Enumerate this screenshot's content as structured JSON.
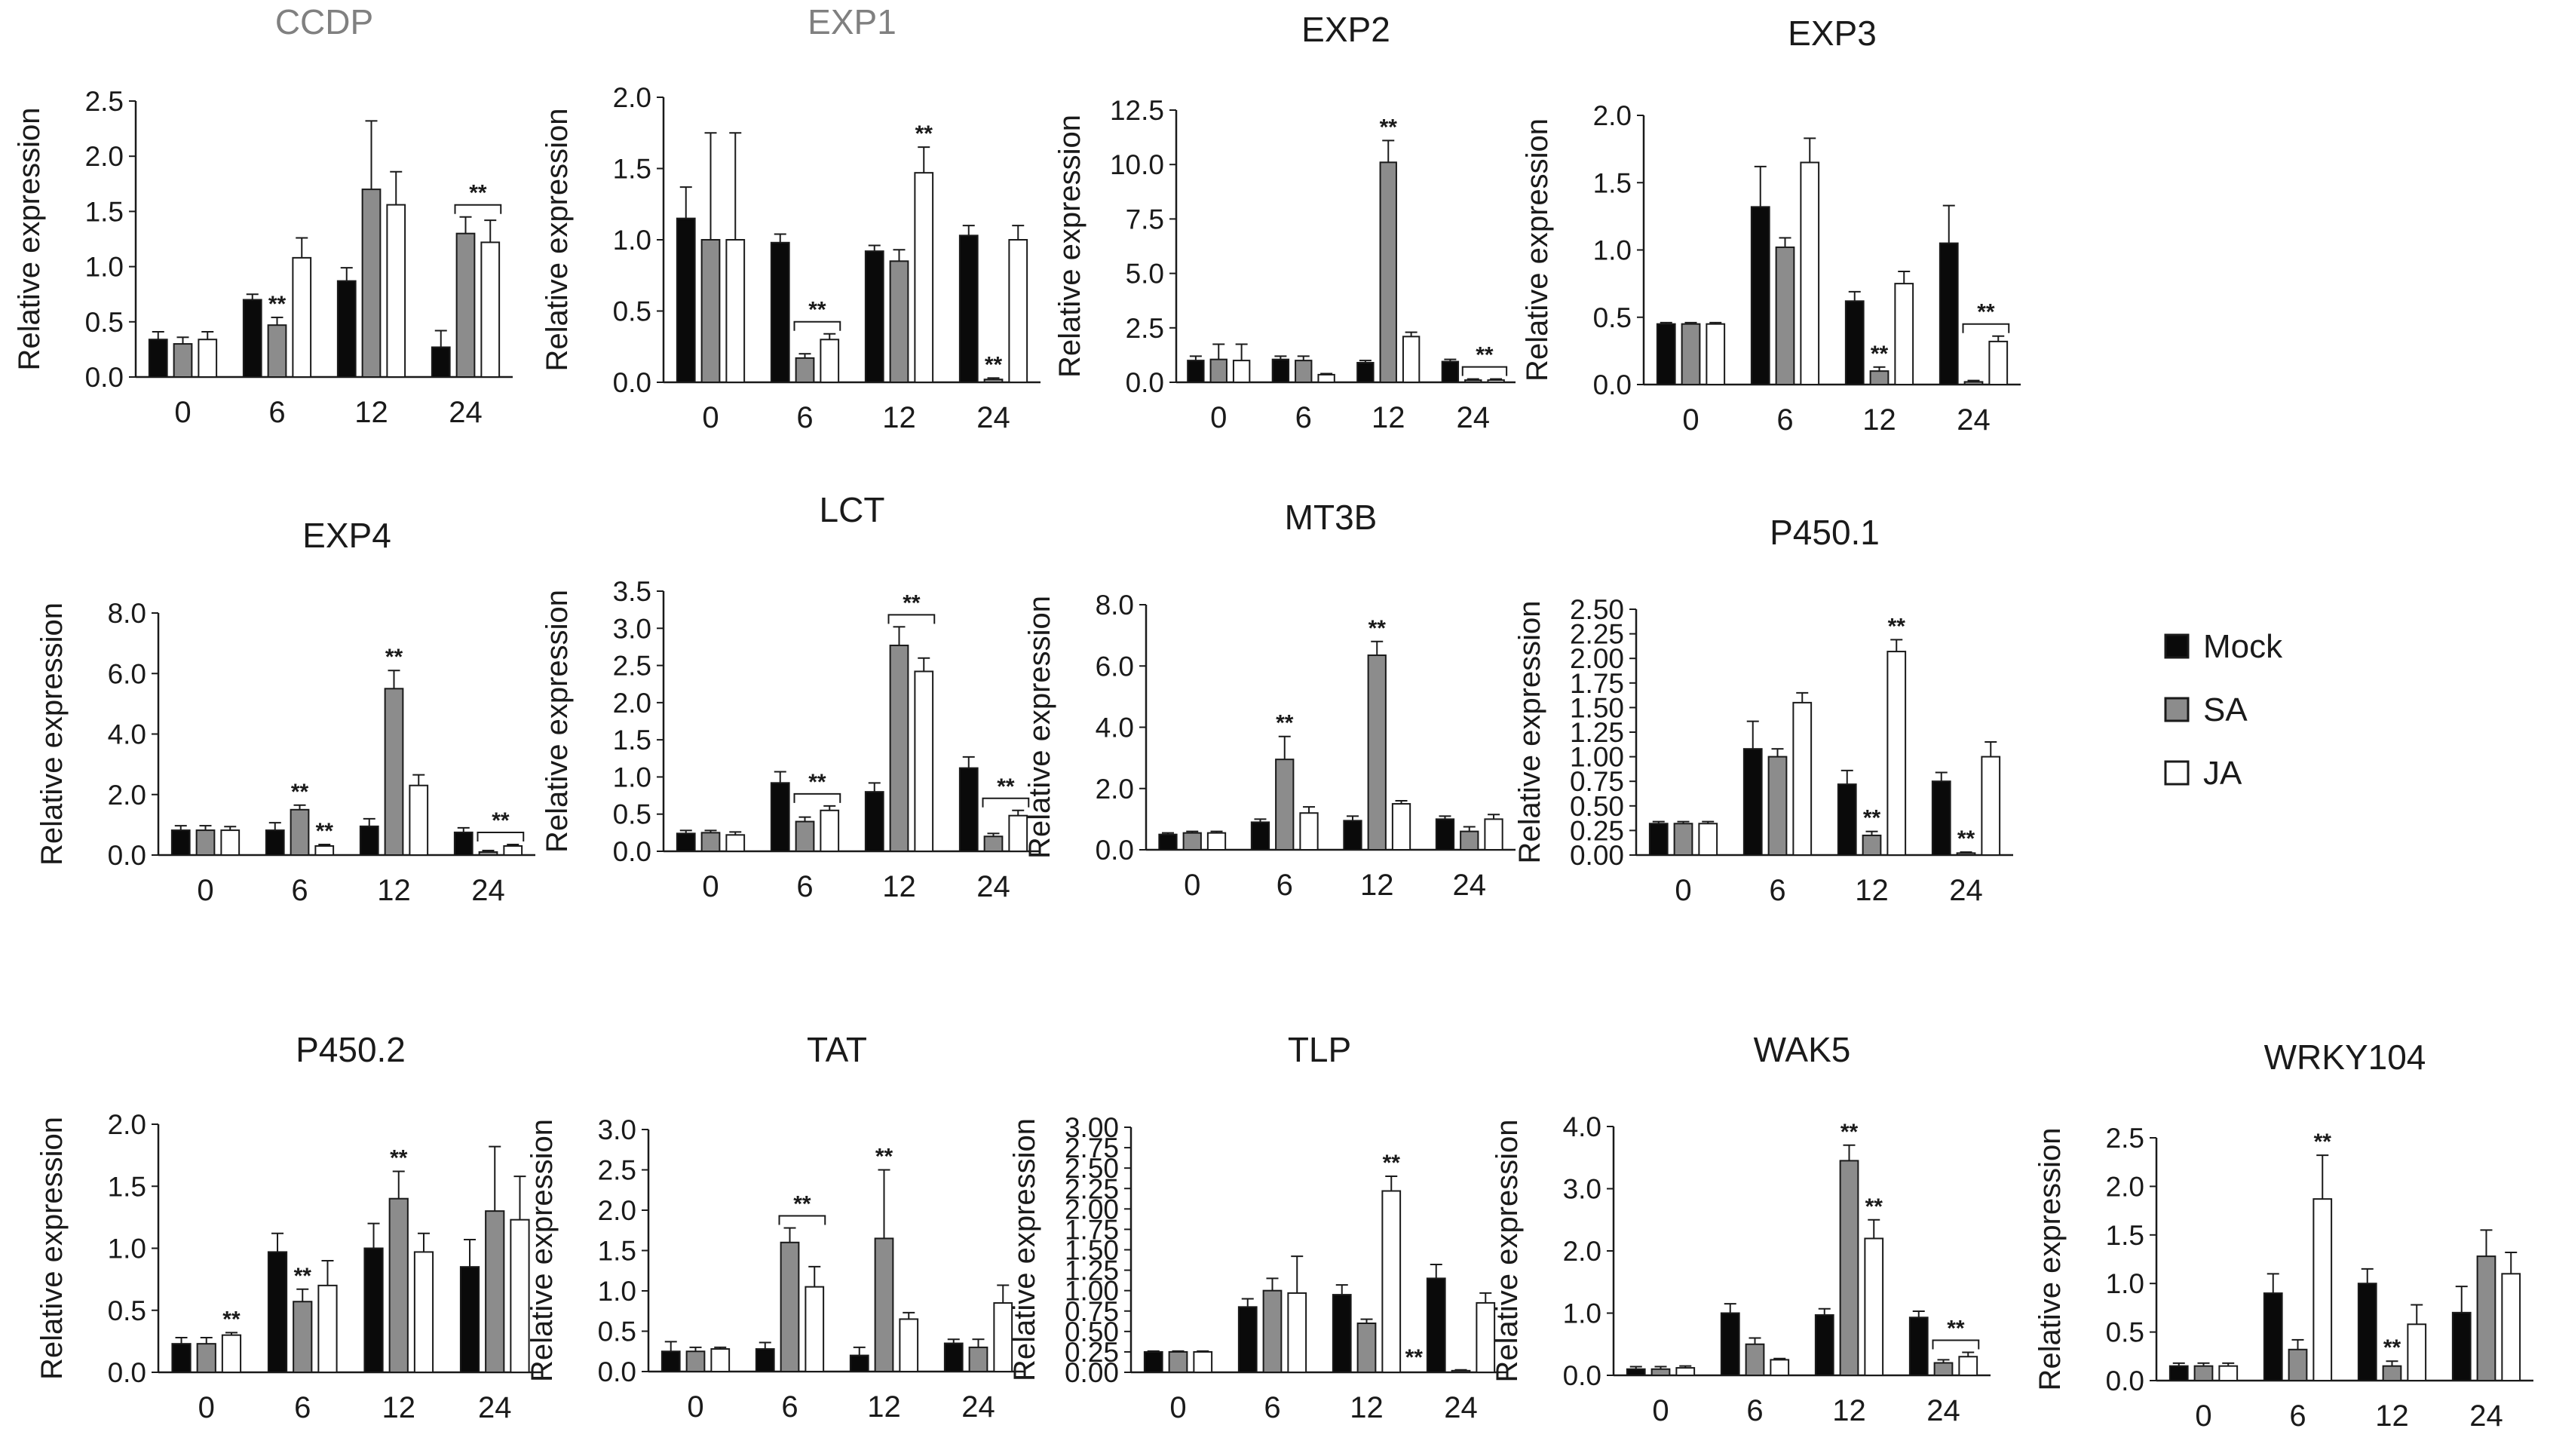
{
  "figure": {
    "legend": [
      {
        "name": "Mock",
        "color": "#0a0a0a"
      },
      {
        "name": "SA",
        "color": "#8c8c8c"
      },
      {
        "name": "JA",
        "color": "#ffffff"
      }
    ],
    "colors": {
      "axis": "#1a1a1a",
      "muted_title": "#808080",
      "title": "#1a1a1a",
      "error_bar": "#1a1a1a"
    }
  },
  "chart_data": [
    {
      "type": "bar",
      "title": "CCDP",
      "title_muted": true,
      "ylabel": "Relative expression",
      "categories": [
        "0",
        "6",
        "12",
        "24"
      ],
      "yticks": [
        "0.0",
        "0.5",
        "1.0",
        "1.5",
        "2.0",
        "2.5"
      ],
      "ylim": [
        0,
        2.5
      ],
      "series": [
        {
          "name": "Mock",
          "values": [
            0.34,
            0.7,
            0.87,
            0.27
          ]
        },
        {
          "name": "SA",
          "values": [
            0.3,
            0.47,
            1.7,
            1.3
          ]
        },
        {
          "name": "JA",
          "values": [
            0.34,
            1.08,
            1.56,
            1.22
          ]
        }
      ],
      "errors": [
        [
          0.07,
          0.05,
          0.12,
          0.15
        ],
        [
          0.06,
          0.07,
          0.62,
          0.15
        ],
        [
          0.07,
          0.18,
          0.3,
          0.2
        ]
      ],
      "annotations": [
        {
          "category": "6",
          "series": "SA",
          "label": "**"
        },
        {
          "category": "24",
          "series": "SA-JA",
          "label": "**",
          "bracket": true
        }
      ]
    },
    {
      "type": "bar",
      "title": "EXP1",
      "title_muted": true,
      "ylabel": "Relative expression",
      "categories": [
        "0",
        "6",
        "12",
        "24"
      ],
      "yticks": [
        "0.0",
        "0.5",
        "1.0",
        "1.5",
        "2.0"
      ],
      "ylim": [
        0,
        2.0
      ],
      "series": [
        {
          "name": "Mock",
          "values": [
            1.15,
            0.98,
            0.92,
            1.03
          ]
        },
        {
          "name": "SA",
          "values": [
            1.0,
            0.17,
            0.85,
            0.02
          ]
        },
        {
          "name": "JA",
          "values": [
            1.0,
            0.3,
            1.47,
            1.0
          ]
        }
      ],
      "errors": [
        [
          0.22,
          0.06,
          0.04,
          0.07
        ],
        [
          0.75,
          0.03,
          0.08,
          0.01
        ],
        [
          0.75,
          0.04,
          0.18,
          0.1
        ]
      ],
      "annotations": [
        {
          "category": "6",
          "series": "SA-JA",
          "label": "**",
          "bracket": true
        },
        {
          "category": "12",
          "series": "JA",
          "label": "**"
        },
        {
          "category": "24",
          "series": "SA",
          "label": "**"
        }
      ]
    },
    {
      "type": "bar",
      "title": "EXP2",
      "title_muted": false,
      "ylabel": "Relative expression",
      "categories": [
        "0",
        "6",
        "12",
        "24"
      ],
      "yticks": [
        "0.0",
        "2.5",
        "5.0",
        "7.5",
        "10.0",
        "12.5"
      ],
      "ylim": [
        0,
        12.5
      ],
      "series": [
        {
          "name": "Mock",
          "values": [
            1.0,
            1.05,
            0.9,
            0.95
          ]
        },
        {
          "name": "SA",
          "values": [
            1.05,
            1.0,
            10.1,
            0.1
          ]
        },
        {
          "name": "JA",
          "values": [
            1.0,
            0.35,
            2.1,
            0.1
          ]
        }
      ],
      "errors": [
        [
          0.2,
          0.15,
          0.1,
          0.1
        ],
        [
          0.7,
          0.2,
          1.0,
          0.05
        ],
        [
          0.75,
          0.05,
          0.2,
          0.05
        ]
      ],
      "annotations": [
        {
          "category": "12",
          "series": "SA",
          "label": "**"
        },
        {
          "category": "24",
          "series": "SA-JA",
          "label": "**",
          "bracket": true
        }
      ]
    },
    {
      "type": "bar",
      "title": "EXP3",
      "title_muted": false,
      "ylabel": "Relative expression",
      "categories": [
        "0",
        "6",
        "12",
        "24"
      ],
      "yticks": [
        "0.0",
        "0.5",
        "1.0",
        "1.5",
        "2.0"
      ],
      "ylim": [
        0,
        2.0
      ],
      "series": [
        {
          "name": "Mock",
          "values": [
            0.45,
            1.32,
            0.62,
            1.05
          ]
        },
        {
          "name": "SA",
          "values": [
            0.45,
            1.02,
            0.1,
            0.02
          ]
        },
        {
          "name": "JA",
          "values": [
            0.45,
            1.65,
            0.75,
            0.32
          ]
        }
      ],
      "errors": [
        [
          0.01,
          0.3,
          0.07,
          0.28
        ],
        [
          0.01,
          0.07,
          0.03,
          0.01
        ],
        [
          0.01,
          0.18,
          0.09,
          0.04
        ]
      ],
      "annotations": [
        {
          "category": "12",
          "series": "SA",
          "label": "**"
        },
        {
          "category": "24",
          "series": "SA-JA",
          "label": "**",
          "bracket": true
        }
      ]
    },
    {
      "type": "bar",
      "title": "EXP4",
      "title_muted": false,
      "ylabel": "Relative expression",
      "categories": [
        "0",
        "6",
        "12",
        "24"
      ],
      "yticks": [
        "0.0",
        "2.0",
        "4.0",
        "6.0",
        "8.0"
      ],
      "ylim": [
        0,
        8.0
      ],
      "series": [
        {
          "name": "Mock",
          "values": [
            0.82,
            0.82,
            0.95,
            0.75
          ]
        },
        {
          "name": "SA",
          "values": [
            0.82,
            1.5,
            5.5,
            0.1
          ]
        },
        {
          "name": "JA",
          "values": [
            0.82,
            0.3,
            2.3,
            0.3
          ]
        }
      ],
      "errors": [
        [
          0.15,
          0.25,
          0.25,
          0.15
        ],
        [
          0.15,
          0.15,
          0.6,
          0.05
        ],
        [
          0.12,
          0.05,
          0.35,
          0.05
        ]
      ],
      "annotations": [
        {
          "category": "6",
          "series": "SA",
          "label": "**"
        },
        {
          "category": "6",
          "series": "JA",
          "label": "**"
        },
        {
          "category": "12",
          "series": "SA",
          "label": "**"
        },
        {
          "category": "24",
          "series": "SA-JA",
          "label": "**",
          "bracket": true
        }
      ]
    },
    {
      "type": "bar",
      "title": "LCT",
      "title_muted": false,
      "ylabel": "Relative expression",
      "categories": [
        "0",
        "6",
        "12",
        "24"
      ],
      "yticks": [
        "0.0",
        "0.5",
        "1.0",
        "1.5",
        "2.0",
        "2.5",
        "3.0",
        "3.5"
      ],
      "ylim": [
        0,
        3.5
      ],
      "series": [
        {
          "name": "Mock",
          "values": [
            0.24,
            0.92,
            0.8,
            1.12
          ]
        },
        {
          "name": "SA",
          "values": [
            0.25,
            0.4,
            2.77,
            0.2
          ]
        },
        {
          "name": "JA",
          "values": [
            0.22,
            0.55,
            2.42,
            0.48
          ]
        }
      ],
      "errors": [
        [
          0.04,
          0.15,
          0.12,
          0.15
        ],
        [
          0.03,
          0.06,
          0.25,
          0.04
        ],
        [
          0.04,
          0.06,
          0.18,
          0.07
        ]
      ],
      "annotations": [
        {
          "category": "6",
          "series": "SA-JA",
          "label": "**",
          "bracket": true
        },
        {
          "category": "12",
          "series": "SA-JA",
          "label": "**",
          "bracket": true
        },
        {
          "category": "24",
          "series": "SA-JA",
          "label": "**",
          "bracket": true
        }
      ]
    },
    {
      "type": "bar",
      "title": "MT3B",
      "title_muted": false,
      "ylabel": "Relative expression",
      "categories": [
        "0",
        "6",
        "12",
        " 24"
      ],
      "yticks": [
        "0.0",
        "2.0",
        "4.0",
        "6.0",
        "8.0"
      ],
      "ylim": [
        0,
        8.0
      ],
      "series": [
        {
          "name": "Mock",
          "values": [
            0.5,
            0.9,
            0.95,
            1.0
          ]
        },
        {
          "name": "SA",
          "values": [
            0.55,
            2.95,
            6.35,
            0.6
          ]
        },
        {
          "name": "JA",
          "values": [
            0.55,
            1.2,
            1.5,
            1.0
          ]
        }
      ],
      "errors": [
        [
          0.05,
          0.1,
          0.15,
          0.1
        ],
        [
          0.05,
          0.75,
          0.45,
          0.15
        ],
        [
          0.05,
          0.2,
          0.1,
          0.15
        ]
      ],
      "annotations": [
        {
          "category": "6",
          "series": "SA",
          "label": "**"
        },
        {
          "category": "12",
          "series": "SA",
          "label": "**"
        }
      ]
    },
    {
      "type": "bar",
      "title": "P450.1",
      "title_muted": false,
      "ylabel": "Relative expression",
      "categories": [
        "0",
        "6",
        "12",
        "24"
      ],
      "yticks": [
        "0.00",
        "0.25",
        "0.50",
        "0.75",
        "1.00",
        "1.25",
        "1.50",
        "1.75",
        "2.00",
        "2.25",
        "2.50"
      ],
      "ylim": [
        0,
        2.5
      ],
      "series": [
        {
          "name": "Mock",
          "values": [
            0.32,
            1.08,
            0.72,
            0.75
          ]
        },
        {
          "name": "SA",
          "values": [
            0.32,
            1.0,
            0.2,
            0.02
          ]
        },
        {
          "name": "JA",
          "values": [
            0.32,
            1.55,
            2.07,
            1.0
          ]
        }
      ],
      "errors": [
        [
          0.02,
          0.28,
          0.14,
          0.09
        ],
        [
          0.02,
          0.08,
          0.04,
          0.01
        ],
        [
          0.02,
          0.1,
          0.12,
          0.15
        ]
      ],
      "annotations": [
        {
          "category": "12",
          "series": "SA",
          "label": "**"
        },
        {
          "category": "12",
          "series": "JA",
          "label": "**"
        },
        {
          "category": "24",
          "series": "SA",
          "label": "**"
        }
      ]
    },
    {
      "type": "bar",
      "title": "P450.2",
      "title_muted": false,
      "ylabel": "Relative expression",
      "categories": [
        "0",
        "6",
        "12",
        "24"
      ],
      "yticks": [
        "0.0",
        "0.5",
        "1.0",
        "1.5",
        "2.0"
      ],
      "ylim": [
        0,
        2.0
      ],
      "series": [
        {
          "name": "Mock",
          "values": [
            0.23,
            0.97,
            1.0,
            0.85
          ]
        },
        {
          "name": "SA",
          "values": [
            0.23,
            0.57,
            1.4,
            1.3
          ]
        },
        {
          "name": "JA",
          "values": [
            0.3,
            0.7,
            0.97,
            1.23
          ]
        }
      ],
      "errors": [
        [
          0.05,
          0.15,
          0.2,
          0.22
        ],
        [
          0.05,
          0.1,
          0.22,
          0.52
        ],
        [
          0.02,
          0.2,
          0.15,
          0.35
        ]
      ],
      "annotations": [
        {
          "category": "0",
          "series": "JA",
          "label": "**"
        },
        {
          "category": "6",
          "series": "SA",
          "label": "**"
        },
        {
          "category": "12",
          "series": "SA",
          "label": "**"
        }
      ]
    },
    {
      "type": "bar",
      "title": "TAT",
      "title_muted": false,
      "ylabel": "Relative expression",
      "categories": [
        "0",
        "6",
        "12",
        "24"
      ],
      "yticks": [
        "0.0",
        "0.5",
        "1.0",
        "1.5",
        "2.0",
        "2.5",
        "3.0"
      ],
      "ylim": [
        0,
        3.0
      ],
      "series": [
        {
          "name": "Mock",
          "values": [
            0.25,
            0.28,
            0.2,
            0.35
          ]
        },
        {
          "name": "SA",
          "values": [
            0.25,
            1.6,
            1.65,
            0.3
          ]
        },
        {
          "name": "JA",
          "values": [
            0.28,
            1.05,
            0.65,
            0.85
          ]
        }
      ],
      "errors": [
        [
          0.12,
          0.08,
          0.1,
          0.05
        ],
        [
          0.05,
          0.18,
          0.85,
          0.1
        ],
        [
          0.02,
          0.25,
          0.08,
          0.22
        ]
      ],
      "annotations": [
        {
          "category": "6",
          "series": "SA-JA",
          "label": "**",
          "bracket": true
        },
        {
          "category": "12",
          "series": "SA",
          "label": "**"
        }
      ]
    },
    {
      "type": "bar",
      "title": "TLP",
      "title_muted": false,
      "ylabel": "Relative expression",
      "categories": [
        "0",
        "6",
        "12",
        "24"
      ],
      "yticks": [
        "0.00",
        "0.25",
        "0.50",
        "0.75",
        "1.00",
        "1.25",
        "1.50",
        "1.75",
        "2.00",
        "2.25",
        "2.50",
        "2.75",
        "3.00"
      ],
      "ylim": [
        0,
        3.0
      ],
      "series": [
        {
          "name": "Mock",
          "values": [
            0.25,
            0.8,
            0.95,
            1.15
          ]
        },
        {
          "name": "SA",
          "values": [
            0.25,
            1.0,
            0.6,
            0.02
          ]
        },
        {
          "name": "JA",
          "values": [
            0.25,
            0.97,
            2.22,
            0.85
          ]
        }
      ],
      "errors": [
        [
          0.01,
          0.1,
          0.12,
          0.17
        ],
        [
          0.01,
          0.15,
          0.05,
          0.01
        ],
        [
          0.01,
          0.45,
          0.18,
          0.12
        ]
      ],
      "annotations": [
        {
          "category": "12",
          "series": "JA",
          "label": "**"
        },
        {
          "category": "12",
          "series": "JA-low",
          "label": "**"
        }
      ]
    },
    {
      "type": "bar",
      "title": "WAK5",
      "title_muted": false,
      "ylabel": "Relative expression",
      "categories": [
        "0",
        "6",
        "12",
        "24"
      ],
      "yticks": [
        "0.0",
        "1.0",
        "2.0",
        "3.0",
        "4.0"
      ],
      "ylim": [
        0,
        4.0
      ],
      "series": [
        {
          "name": "Mock",
          "values": [
            0.1,
            1.0,
            0.97,
            0.93
          ]
        },
        {
          "name": "SA",
          "values": [
            0.1,
            0.5,
            3.45,
            0.2
          ]
        },
        {
          "name": "JA",
          "values": [
            0.12,
            0.25,
            2.2,
            0.3
          ]
        }
      ],
      "errors": [
        [
          0.04,
          0.15,
          0.1,
          0.1
        ],
        [
          0.04,
          0.1,
          0.25,
          0.05
        ],
        [
          0.03,
          0.02,
          0.3,
          0.07
        ]
      ],
      "annotations": [
        {
          "category": "12",
          "series": "SA",
          "label": "**"
        },
        {
          "category": "12",
          "series": "JA",
          "label": "**"
        },
        {
          "category": "24",
          "series": "SA-JA",
          "label": "**",
          "bracket": true
        }
      ]
    },
    {
      "type": "bar",
      "title": "WRKY104",
      "title_muted": false,
      "ylabel": "Relative expression",
      "categories": [
        "0",
        "6",
        "12",
        "24"
      ],
      "yticks": [
        "0.0",
        "0.5",
        "1.0",
        "1.5",
        "2.0",
        "2.5"
      ],
      "ylim": [
        0,
        2.5
      ],
      "series": [
        {
          "name": "Mock",
          "values": [
            0.15,
            0.9,
            1.0,
            0.7
          ]
        },
        {
          "name": "SA",
          "values": [
            0.15,
            0.32,
            0.15,
            1.28
          ]
        },
        {
          "name": "JA",
          "values": [
            0.15,
            1.87,
            0.58,
            1.1
          ]
        }
      ],
      "errors": [
        [
          0.03,
          0.2,
          0.15,
          0.27
        ],
        [
          0.03,
          0.1,
          0.05,
          0.27
        ],
        [
          0.03,
          0.45,
          0.2,
          0.22
        ]
      ],
      "annotations": [
        {
          "category": "6",
          "series": "JA",
          "label": "**"
        },
        {
          "category": "12",
          "series": "SA",
          "label": "**"
        }
      ]
    }
  ]
}
